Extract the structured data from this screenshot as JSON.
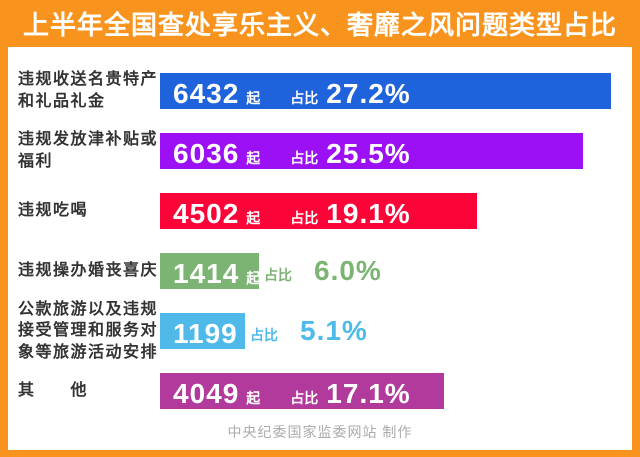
{
  "title": "上半年全国查处享乐主义、奢靡之风问题类型占比",
  "footer": "中央纪委国家监委网站 制作",
  "unit_label": "起",
  "share_label": "占比",
  "colors": {
    "frame_orange": "#F8941D",
    "label_text": "#333333",
    "footer_text": "#ABABAB",
    "bars": [
      "#1E63DC",
      "#9B10F4",
      "#FC0437",
      "#7CB573",
      "#4FBAE9",
      "#B23A9C"
    ]
  },
  "chart_data": {
    "type": "bar",
    "title": "上半年全国查处享乐主义、奢靡之风问题类型占比",
    "categories": [
      "违规收送名贵特产和礼品礼金",
      "违规发放津补贴或福利",
      "违规吃喝",
      "违规操办婚丧喜庆",
      "公款旅游以及违规接受管理和服务对象等旅游活动安排",
      "其他"
    ],
    "series": [
      {
        "name": "起数",
        "values": [
          6432,
          6036,
          4502,
          1414,
          1199,
          4049
        ]
      },
      {
        "name": "占比%",
        "values": [
          27.2,
          25.5,
          19.1,
          6.0,
          5.1,
          17.1
        ]
      }
    ],
    "orientation": "horizontal",
    "grid": false,
    "legend": false,
    "value_label_format": "{count} 起  占比 {pct}%"
  },
  "rows": [
    {
      "label": "违规收送名贵特产和礼品礼金",
      "count": "6432",
      "pct_value": 27.2,
      "pct_text": "27.2%",
      "color": "#1E63DC",
      "pct_inside": true
    },
    {
      "label": "违规发放津补贴或福利",
      "count": "6036",
      "pct_value": 25.5,
      "pct_text": "25.5%",
      "color": "#9B10F4",
      "pct_inside": true
    },
    {
      "label": "违规吃喝",
      "count": "4502",
      "pct_value": 19.1,
      "pct_text": "19.1%",
      "color": "#FC0437",
      "pct_inside": true
    },
    {
      "label": "违规操办婚丧喜庆",
      "count": "1414",
      "pct_value": 6.0,
      "pct_text": "6.0%",
      "color": "#7CB573",
      "pct_inside": false
    },
    {
      "label": "公款旅游以及违规接受管理和服务对象等旅游活动安排",
      "count": "1199",
      "pct_value": 5.1,
      "pct_text": "5.1%",
      "color": "#4FBAE9",
      "pct_inside": false
    },
    {
      "label": "其　　他",
      "count": "4049",
      "pct_value": 17.1,
      "pct_text": "17.1%",
      "color": "#B23A9C",
      "pct_inside": true
    }
  ]
}
